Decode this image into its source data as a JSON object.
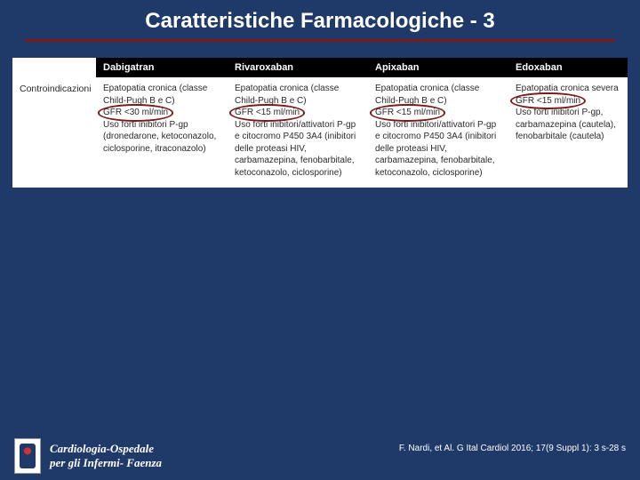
{
  "title": "Caratteristiche Farmacologiche - 3",
  "table": {
    "cols": [
      "",
      "Dabigatran",
      "Rivaroxaban",
      "Apixaban",
      "Edoxaban"
    ],
    "rows": [
      {
        "label": "Controindicazioni",
        "cells": [
          "Epatopatia cronica (classe Child-Pugh B e C)\nGFR <30 ml/min\nUso forti inibitori P-gp (dronedarone, ketoconazolo, ciclosporine, itraconazolo)",
          "Epatopatia cronica (classe Child-Pugh B e C)\nGFR <15 ml/min\nUso forti inibitori/attivatori P-gp e citocromo P450 3A4 (inibitori delle proteasi HIV, carbamazepina, fenobarbitale, ketoconazolo, ciclosporine)",
          "Epatopatia cronica (classe Child-Pugh B e C)\nGFR <15 ml/min\nUso forti inibitori/attivatori P-gp e citocromo P450 3A4 (inibitori delle proteasi HIV, carbamazepina, fenobarbitale, ketoconazolo, ciclosporine)",
          "Epatopatia cronica severa\nGFR <15 ml/min\nUso forti inibitori P-gp, carbamazepina (cautela), fenobarbitale (cautela)"
        ]
      }
    ]
  },
  "ovals": [
    {
      "col": 1,
      "text": "GFR <30 ml/min"
    },
    {
      "col": 2,
      "text": "GFR <15 ml/min"
    },
    {
      "col": 3,
      "text": "GFR <15 ml/min"
    },
    {
      "col": 4,
      "text": "GFR <15 ml/min"
    }
  ],
  "affiliation_line1": "Cardiologia-Ospedale",
  "affiliation_line2": "per gli Infermi- Faenza",
  "citation": "F. Nardi, et Al. G Ital Cardiol 2016; 17(9 Suppl 1): 3 s-28 s",
  "colors": {
    "bg": "#1f3a68",
    "rule": "#7a1a1a",
    "header_bg": "#000000",
    "header_fg": "#ffffff",
    "text": "#2a2a2a"
  }
}
